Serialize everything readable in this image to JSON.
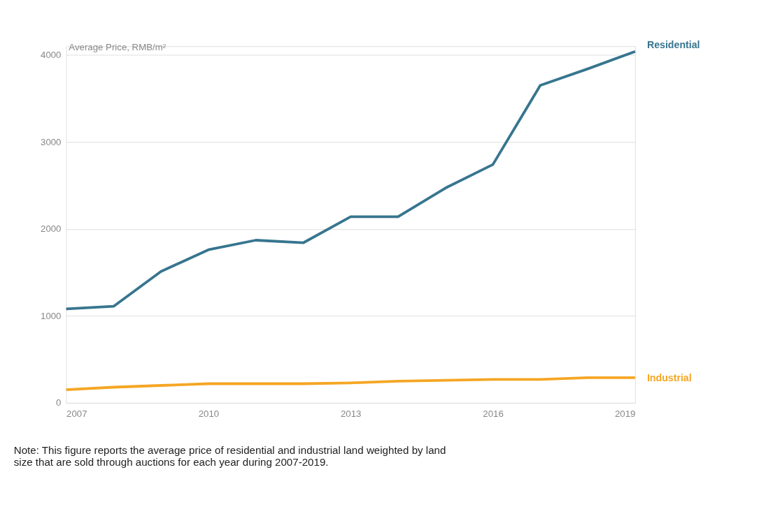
{
  "chart_data": {
    "type": "line",
    "ylabel": "Average Price, RMB/m²",
    "x": [
      2007,
      2008,
      2009,
      2010,
      2011,
      2012,
      2013,
      2014,
      2015,
      2016,
      2017,
      2018,
      2019
    ],
    "series": [
      {
        "name": "Residential",
        "color": "#37758f",
        "values": [
          1080,
          1110,
          1510,
          1760,
          1870,
          1840,
          2140,
          2140,
          2470,
          2740,
          3650,
          3840,
          4040
        ]
      },
      {
        "name": "Industrial",
        "color": "#f5a623",
        "values": [
          150,
          180,
          200,
          220,
          220,
          220,
          230,
          250,
          260,
          270,
          270,
          290,
          290
        ]
      }
    ],
    "xlim": [
      2007,
      2019
    ],
    "xticks": [
      2007,
      2010,
      2013,
      2016,
      2019
    ],
    "ylim": [
      0,
      4100
    ],
    "yticks": [
      0,
      1000,
      2000,
      3000,
      4000
    ],
    "grid": "y",
    "marker": "none",
    "line_style": "solid",
    "annotations": [
      "Note: This figure reports the average price of residential and industrial land weighted by land size that are sold through auctions for each year during 2007-2019."
    ]
  }
}
